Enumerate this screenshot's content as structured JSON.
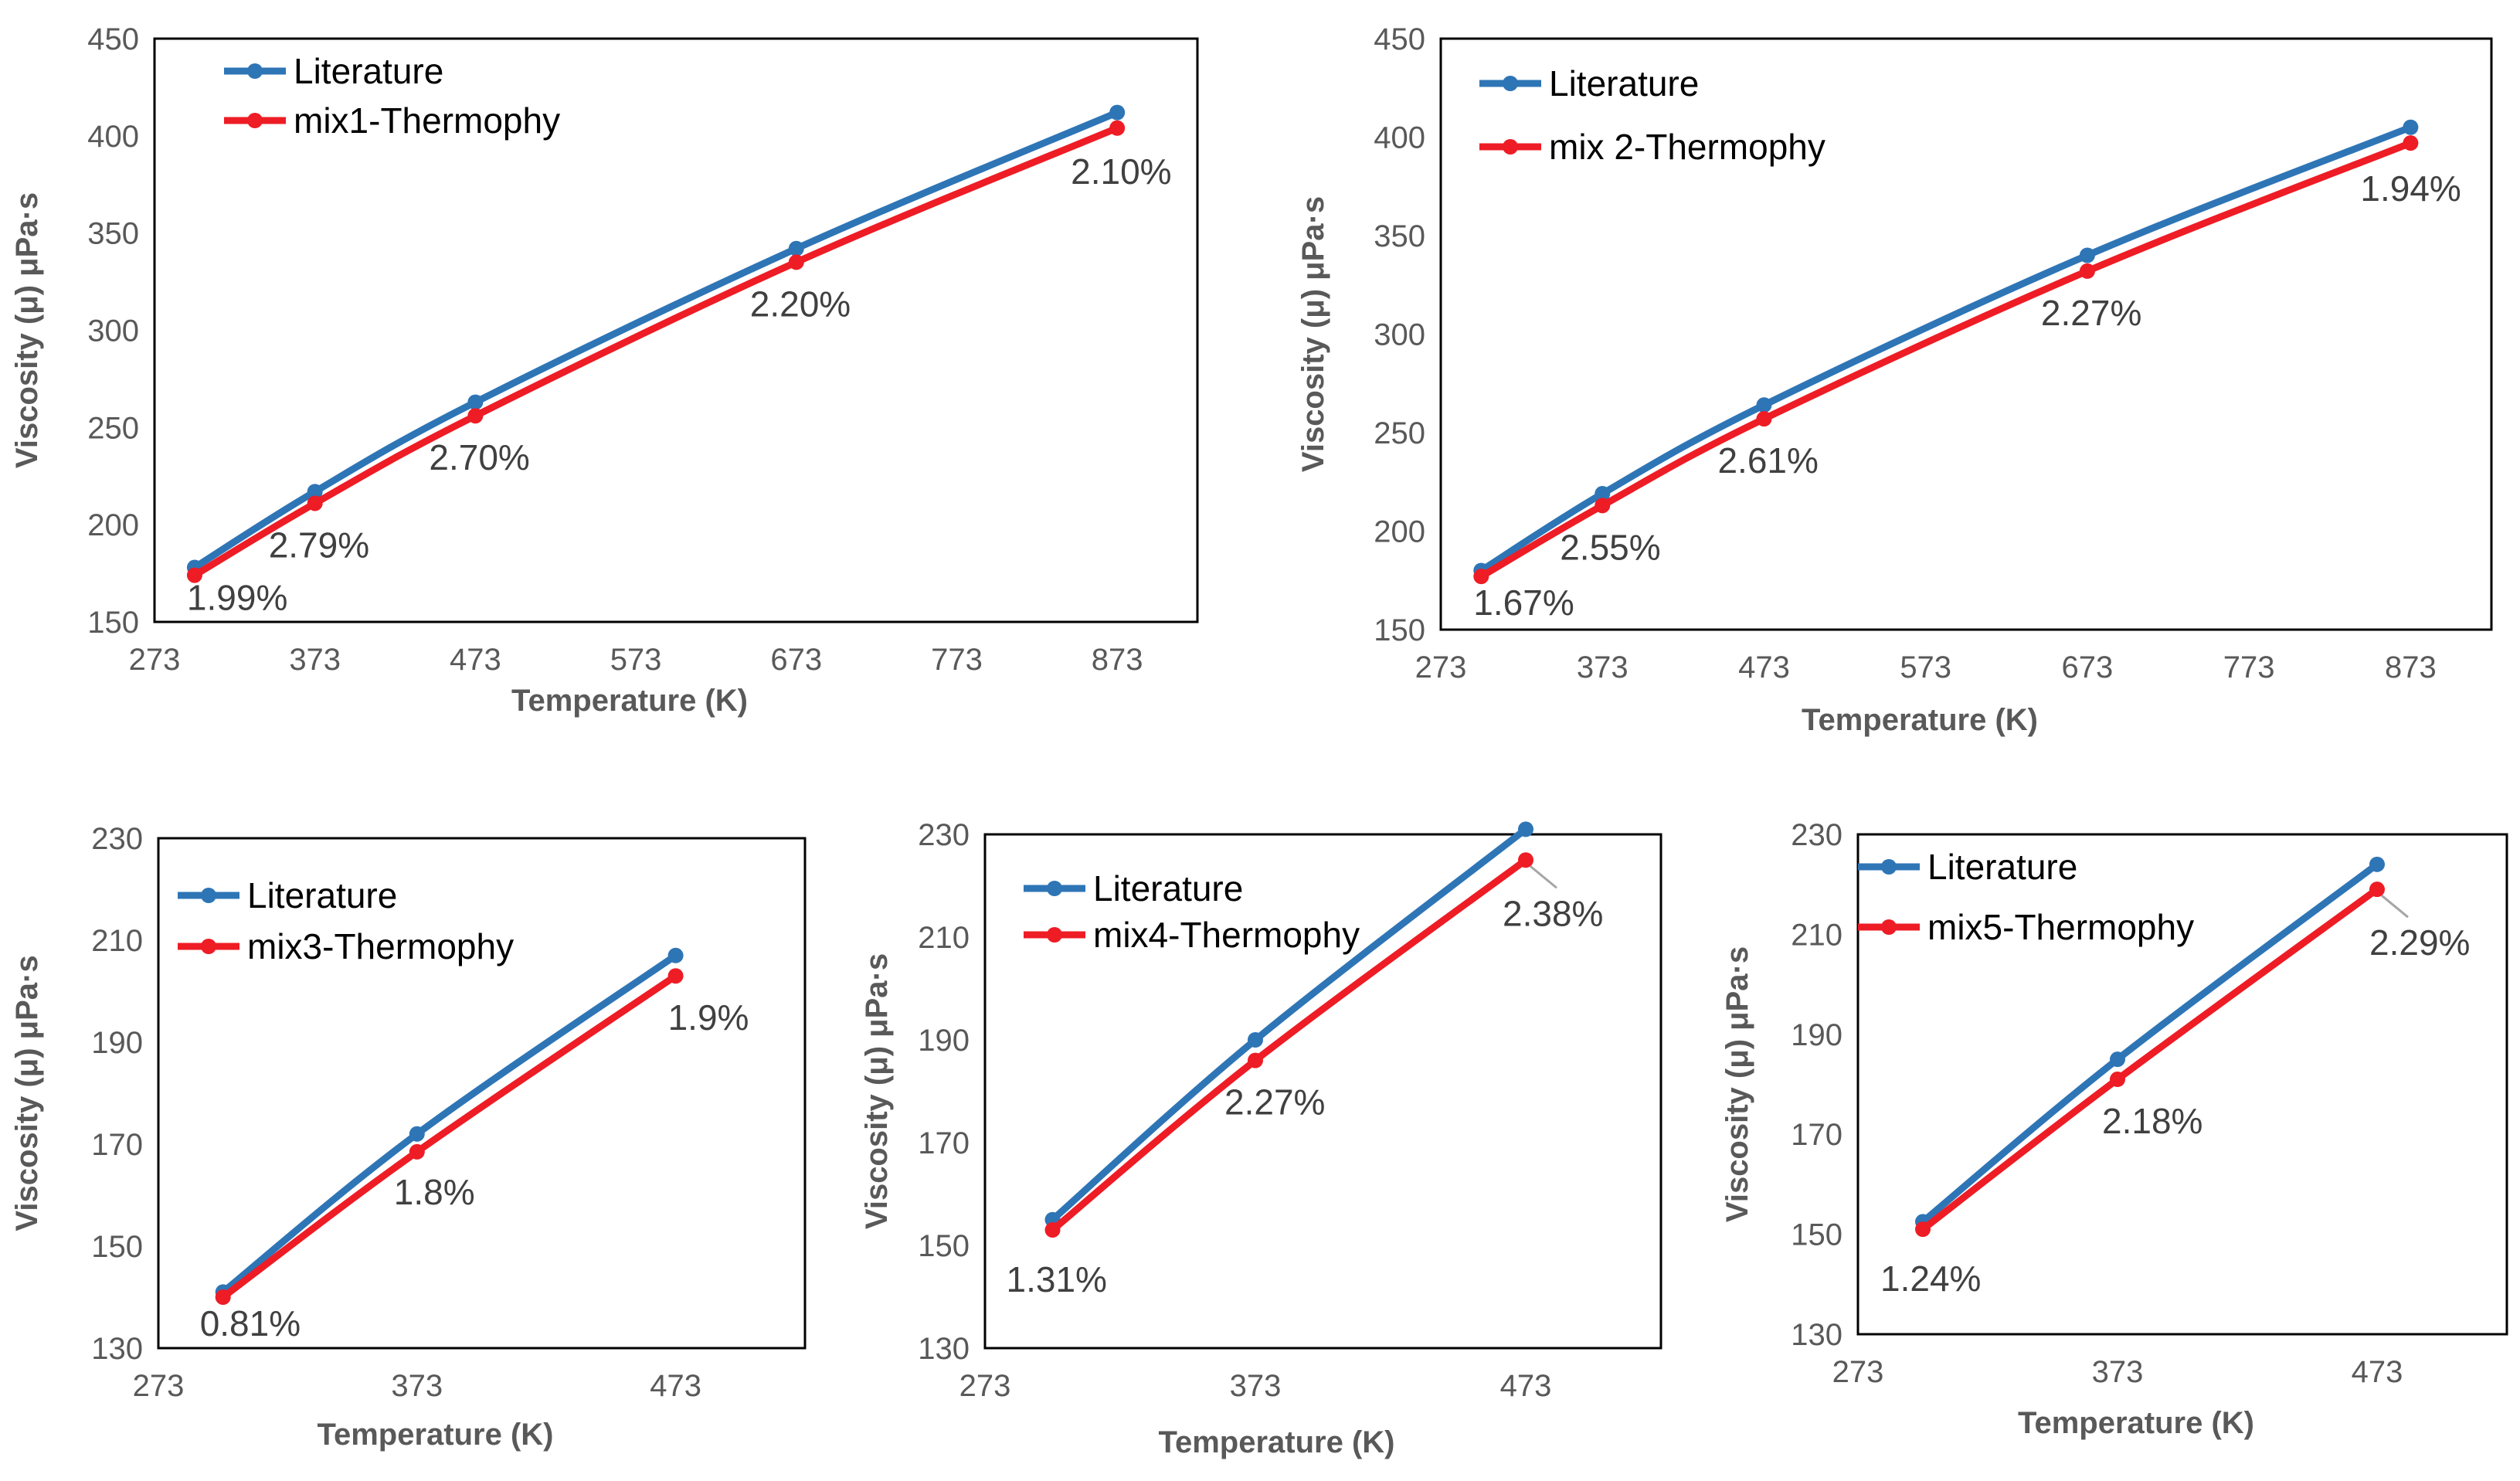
{
  "colors": {
    "literature": "#2E75B6",
    "thermophy": "#EE1C25",
    "axis_text": "#595959",
    "frame": "#000000",
    "leader": "#A6A6A6"
  },
  "chart_data": [
    {
      "type": "line",
      "xlabel": "Temperature (K)",
      "ylabel": "Viscosity (μ) μPa·s",
      "xlim": [
        273,
        923
      ],
      "ylim": [
        150,
        450
      ],
      "xticks": [
        273,
        373,
        473,
        573,
        673,
        773,
        873
      ],
      "yticks": [
        150,
        200,
        250,
        300,
        350,
        400,
        450
      ],
      "grid": false,
      "legend": "top-left",
      "series": [
        {
          "name": "Literature",
          "color": "#2E75B6",
          "x": [
            298,
            373,
            473,
            673,
            873
          ],
          "values": [
            178,
            217,
            263,
            342,
            412
          ]
        },
        {
          "name": "mix1-Thermophy",
          "color": "#EE1C25",
          "x": [
            298,
            373,
            473,
            673,
            873
          ],
          "values": [
            174,
            211,
            256,
            335,
            404
          ]
        }
      ],
      "annotations": [
        {
          "text": "1.99%",
          "x": 298,
          "y": 174
        },
        {
          "text": "2.79%",
          "x": 373,
          "y": 211
        },
        {
          "text": "2.70%",
          "x": 473,
          "y": 256
        },
        {
          "text": "2.20%",
          "x": 673,
          "y": 335
        },
        {
          "text": "2.10%",
          "x": 873,
          "y": 404
        }
      ]
    },
    {
      "type": "line",
      "xlabel": "Temperature (K)",
      "ylabel": "Viscosity (μ) μPa·s",
      "xlim": [
        273,
        923
      ],
      "ylim": [
        150,
        450
      ],
      "xticks": [
        273,
        373,
        473,
        573,
        673,
        773,
        873
      ],
      "yticks": [
        150,
        200,
        250,
        300,
        350,
        400,
        450
      ],
      "grid": false,
      "legend": "top-left",
      "series": [
        {
          "name": "Literature",
          "color": "#2E75B6",
          "x": [
            298,
            373,
            473,
            673,
            873
          ],
          "values": [
            180,
            219,
            264,
            340,
            405
          ]
        },
        {
          "name": "mix 2-Thermophy",
          "color": "#EE1C25",
          "x": [
            298,
            373,
            473,
            673,
            873
          ],
          "values": [
            177,
            213,
            257,
            332,
            397
          ]
        }
      ],
      "annotations": [
        {
          "text": "1.67%",
          "x": 298,
          "y": 177
        },
        {
          "text": "2.55%",
          "x": 373,
          "y": 213
        },
        {
          "text": "2.61%",
          "x": 473,
          "y": 257
        },
        {
          "text": "2.27%",
          "x": 673,
          "y": 332
        },
        {
          "text": "1.94%",
          "x": 873,
          "y": 397
        }
      ]
    },
    {
      "type": "line",
      "xlabel": "Temperature (K)",
      "ylabel": "Viscosity (μ) μPa·s",
      "xlim": [
        273,
        523
      ],
      "ylim": [
        130,
        230
      ],
      "xticks": [
        273,
        373,
        473
      ],
      "yticks": [
        130,
        150,
        170,
        190,
        210,
        230
      ],
      "grid": false,
      "legend": "top-left",
      "series": [
        {
          "name": "Literature",
          "color": "#2E75B6",
          "x": [
            298,
            373,
            473
          ],
          "values": [
            141,
            172,
            207
          ]
        },
        {
          "name": "mix3-Thermophy",
          "color": "#EE1C25",
          "x": [
            298,
            373,
            473
          ],
          "values": [
            140,
            168.5,
            203
          ]
        }
      ],
      "annotations": [
        {
          "text": "0.81%",
          "x": 298,
          "y": 140
        },
        {
          "text": "1.8%",
          "x": 373,
          "y": 168.5
        },
        {
          "text": "1.9%",
          "x": 473,
          "y": 203
        }
      ]
    },
    {
      "type": "line",
      "xlabel": "Temperature (K)",
      "ylabel": "Viscosity (μ) μPa·s",
      "xlim": [
        273,
        523
      ],
      "ylim": [
        130,
        230
      ],
      "xticks": [
        273,
        373,
        473
      ],
      "yticks": [
        130,
        150,
        170,
        190,
        210,
        230
      ],
      "grid": false,
      "legend": "top-left",
      "series": [
        {
          "name": "Literature",
          "color": "#2E75B6",
          "x": [
            298,
            373,
            473
          ],
          "values": [
            155,
            190,
            231
          ]
        },
        {
          "name": "mix4-Thermophy",
          "color": "#EE1C25",
          "x": [
            298,
            373,
            473
          ],
          "values": [
            153,
            186,
            225
          ]
        }
      ],
      "annotations": [
        {
          "text": "1.31%",
          "x": 298,
          "y": 153
        },
        {
          "text": "2.27%",
          "x": 373,
          "y": 186
        },
        {
          "text": "2.38%",
          "x": 473,
          "y": 225
        }
      ]
    },
    {
      "type": "line",
      "xlabel": "Temperature (K)",
      "ylabel": "Viscosity (μ) μPa·s",
      "xlim": [
        273,
        523
      ],
      "ylim": [
        130,
        230
      ],
      "xticks": [
        273,
        373,
        473
      ],
      "yticks": [
        130,
        150,
        170,
        190,
        210,
        230
      ],
      "grid": false,
      "legend": "top-left",
      "series": [
        {
          "name": "Literature",
          "color": "#2E75B6",
          "x": [
            298,
            373,
            473
          ],
          "values": [
            152.5,
            185,
            224
          ]
        },
        {
          "name": "mix5-Thermophy",
          "color": "#EE1C25",
          "x": [
            298,
            373,
            473
          ],
          "values": [
            151,
            181,
            219
          ]
        }
      ],
      "annotations": [
        {
          "text": "1.24%",
          "x": 298,
          "y": 151
        },
        {
          "text": "2.18%",
          "x": 373,
          "y": 181
        },
        {
          "text": "2.29%",
          "x": 473,
          "y": 219
        }
      ]
    }
  ]
}
